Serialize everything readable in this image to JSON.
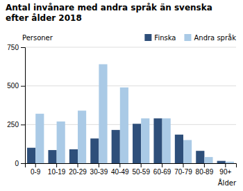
{
  "chart_data": {
    "type": "bar",
    "title": "Antal invånare med andra språk än svenska",
    "subtitle": "efter ålder 2018",
    "y_label": "Personer",
    "x_label": "Ålder",
    "categories": [
      "0-9",
      "10-19",
      "20-29",
      "30-39",
      "40-49",
      "50-59",
      "60-69",
      "70-79",
      "80-89",
      "90+"
    ],
    "series": [
      {
        "name": "Finska",
        "color": "#2E4F7A",
        "values": [
          100,
          85,
          90,
          160,
          215,
          255,
          290,
          185,
          80,
          15
        ]
      },
      {
        "name": "Andra språk",
        "color": "#AACAE6",
        "values": [
          320,
          270,
          340,
          640,
          490,
          290,
          290,
          150,
          40,
          10
        ]
      }
    ],
    "ylim": [
      0,
      750
    ],
    "yticks": [
      0,
      250,
      500,
      750
    ],
    "grid": true,
    "legend": "upper right"
  }
}
